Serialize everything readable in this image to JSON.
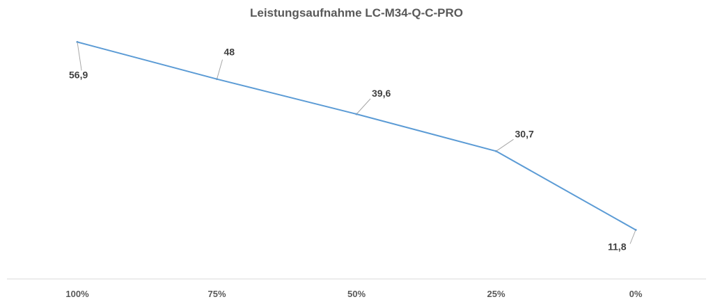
{
  "chart_data": {
    "type": "line",
    "title": "Leistungsaufnahme LC-M34-Q-C-PRO",
    "categories": [
      "100%",
      "75%",
      "50%",
      "25%",
      "0%"
    ],
    "series": [
      {
        "values": [
          56.9,
          48,
          39.6,
          30.7,
          11.8
        ]
      }
    ],
    "data_labels": [
      "56,9",
      "48",
      "39,6",
      "30,7",
      "11,8"
    ],
    "xlabel": "",
    "ylabel": "",
    "ylim": [
      0,
      65
    ],
    "grid": false,
    "legend": "none",
    "line_color": "#5b9bd5"
  }
}
